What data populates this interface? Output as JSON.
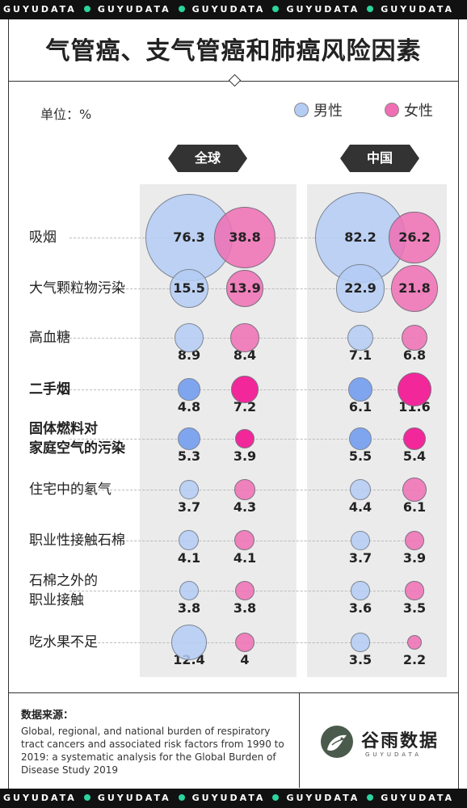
{
  "band_word": "GUYUDATA",
  "title": "气管癌、支气管癌和肺癌风险因素",
  "unit_label": "单位：%",
  "legend": {
    "male": "男性",
    "female": "女性"
  },
  "groups": {
    "global": "全球",
    "china": "中国"
  },
  "colors": {
    "male": "#b4cdf5",
    "female": "#f06eb4",
    "male_dark": "#7fa5ee",
    "female_dark": "#f1279a",
    "band": "#111111",
    "band_dot": "#2bd59f",
    "panel": "#ebebeb"
  },
  "source": {
    "title": "数据来源：",
    "text": "Global, regional, and national burden of respiratory tract cancers and associated risk factors from 1990 to 2019: a systematic analysis for the Global Burden of Disease Study 2019"
  },
  "logo": {
    "name": "谷雨数据",
    "sub": "GUYUDATA",
    "icon": "bird-logo-icon"
  },
  "chart_data": {
    "type": "bubble",
    "title": "气管癌、支气管癌和肺癌风险因素",
    "unit": "%",
    "categories": [
      "吸烟",
      "大气颗粒物污染",
      "高血糖",
      "二手烟",
      "固体燃料对家庭空气的污染",
      "住宅中的氡气",
      "职业性接触石棉",
      "石棉之外的职业接触",
      "吃水果不足"
    ],
    "category_lines": [
      [
        "吸烟"
      ],
      [
        "大气颗粒物污染"
      ],
      [
        "高血糖"
      ],
      [
        "二手烟"
      ],
      [
        "固体燃料对",
        "家庭空气的污染"
      ],
      [
        "住宅中的氡气"
      ],
      [
        "职业性接触石棉"
      ],
      [
        "石棉之外的",
        "职业接触"
      ],
      [
        "吃水果不足"
      ]
    ],
    "bold_categories": [
      3,
      4
    ],
    "series": [
      {
        "name": "男性",
        "region": "全球",
        "values": [
          76.3,
          15.5,
          8.9,
          4.8,
          5.3,
          3.7,
          4.1,
          3.8,
          12.4
        ]
      },
      {
        "name": "女性",
        "region": "全球",
        "values": [
          38.8,
          13.9,
          8.4,
          7.2,
          3.9,
          4.3,
          4.1,
          3.8,
          4
        ]
      },
      {
        "name": "男性",
        "region": "中国",
        "values": [
          82.2,
          22.9,
          7.1,
          6.1,
          5.5,
          4.4,
          3.7,
          3.6,
          3.5
        ]
      },
      {
        "name": "女性",
        "region": "中国",
        "values": [
          26.2,
          21.8,
          6.8,
          11.6,
          5.4,
          6.1,
          3.9,
          3.5,
          2.2
        ]
      }
    ],
    "highlighted_rows": [
      3,
      4
    ]
  }
}
